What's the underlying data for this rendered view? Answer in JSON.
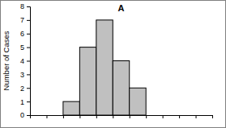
{
  "chart_data": {
    "type": "histogram",
    "title": "A",
    "y_label": "Number of Cases",
    "bins": [
      2,
      3,
      4,
      5,
      6,
      7
    ],
    "values": [
      1,
      5,
      7,
      4,
      2
    ],
    "color": "#c0c0c0",
    "xlim": [
      0,
      11
    ],
    "xticks": [
      0,
      1,
      2,
      3,
      4,
      5,
      6,
      7,
      8,
      9,
      10,
      11
    ],
    "ylim": [
      0,
      8
    ],
    "yticks": [
      0,
      1,
      2,
      3,
      4,
      5,
      6,
      7,
      8
    ],
    "tick_labels": "y"
  }
}
